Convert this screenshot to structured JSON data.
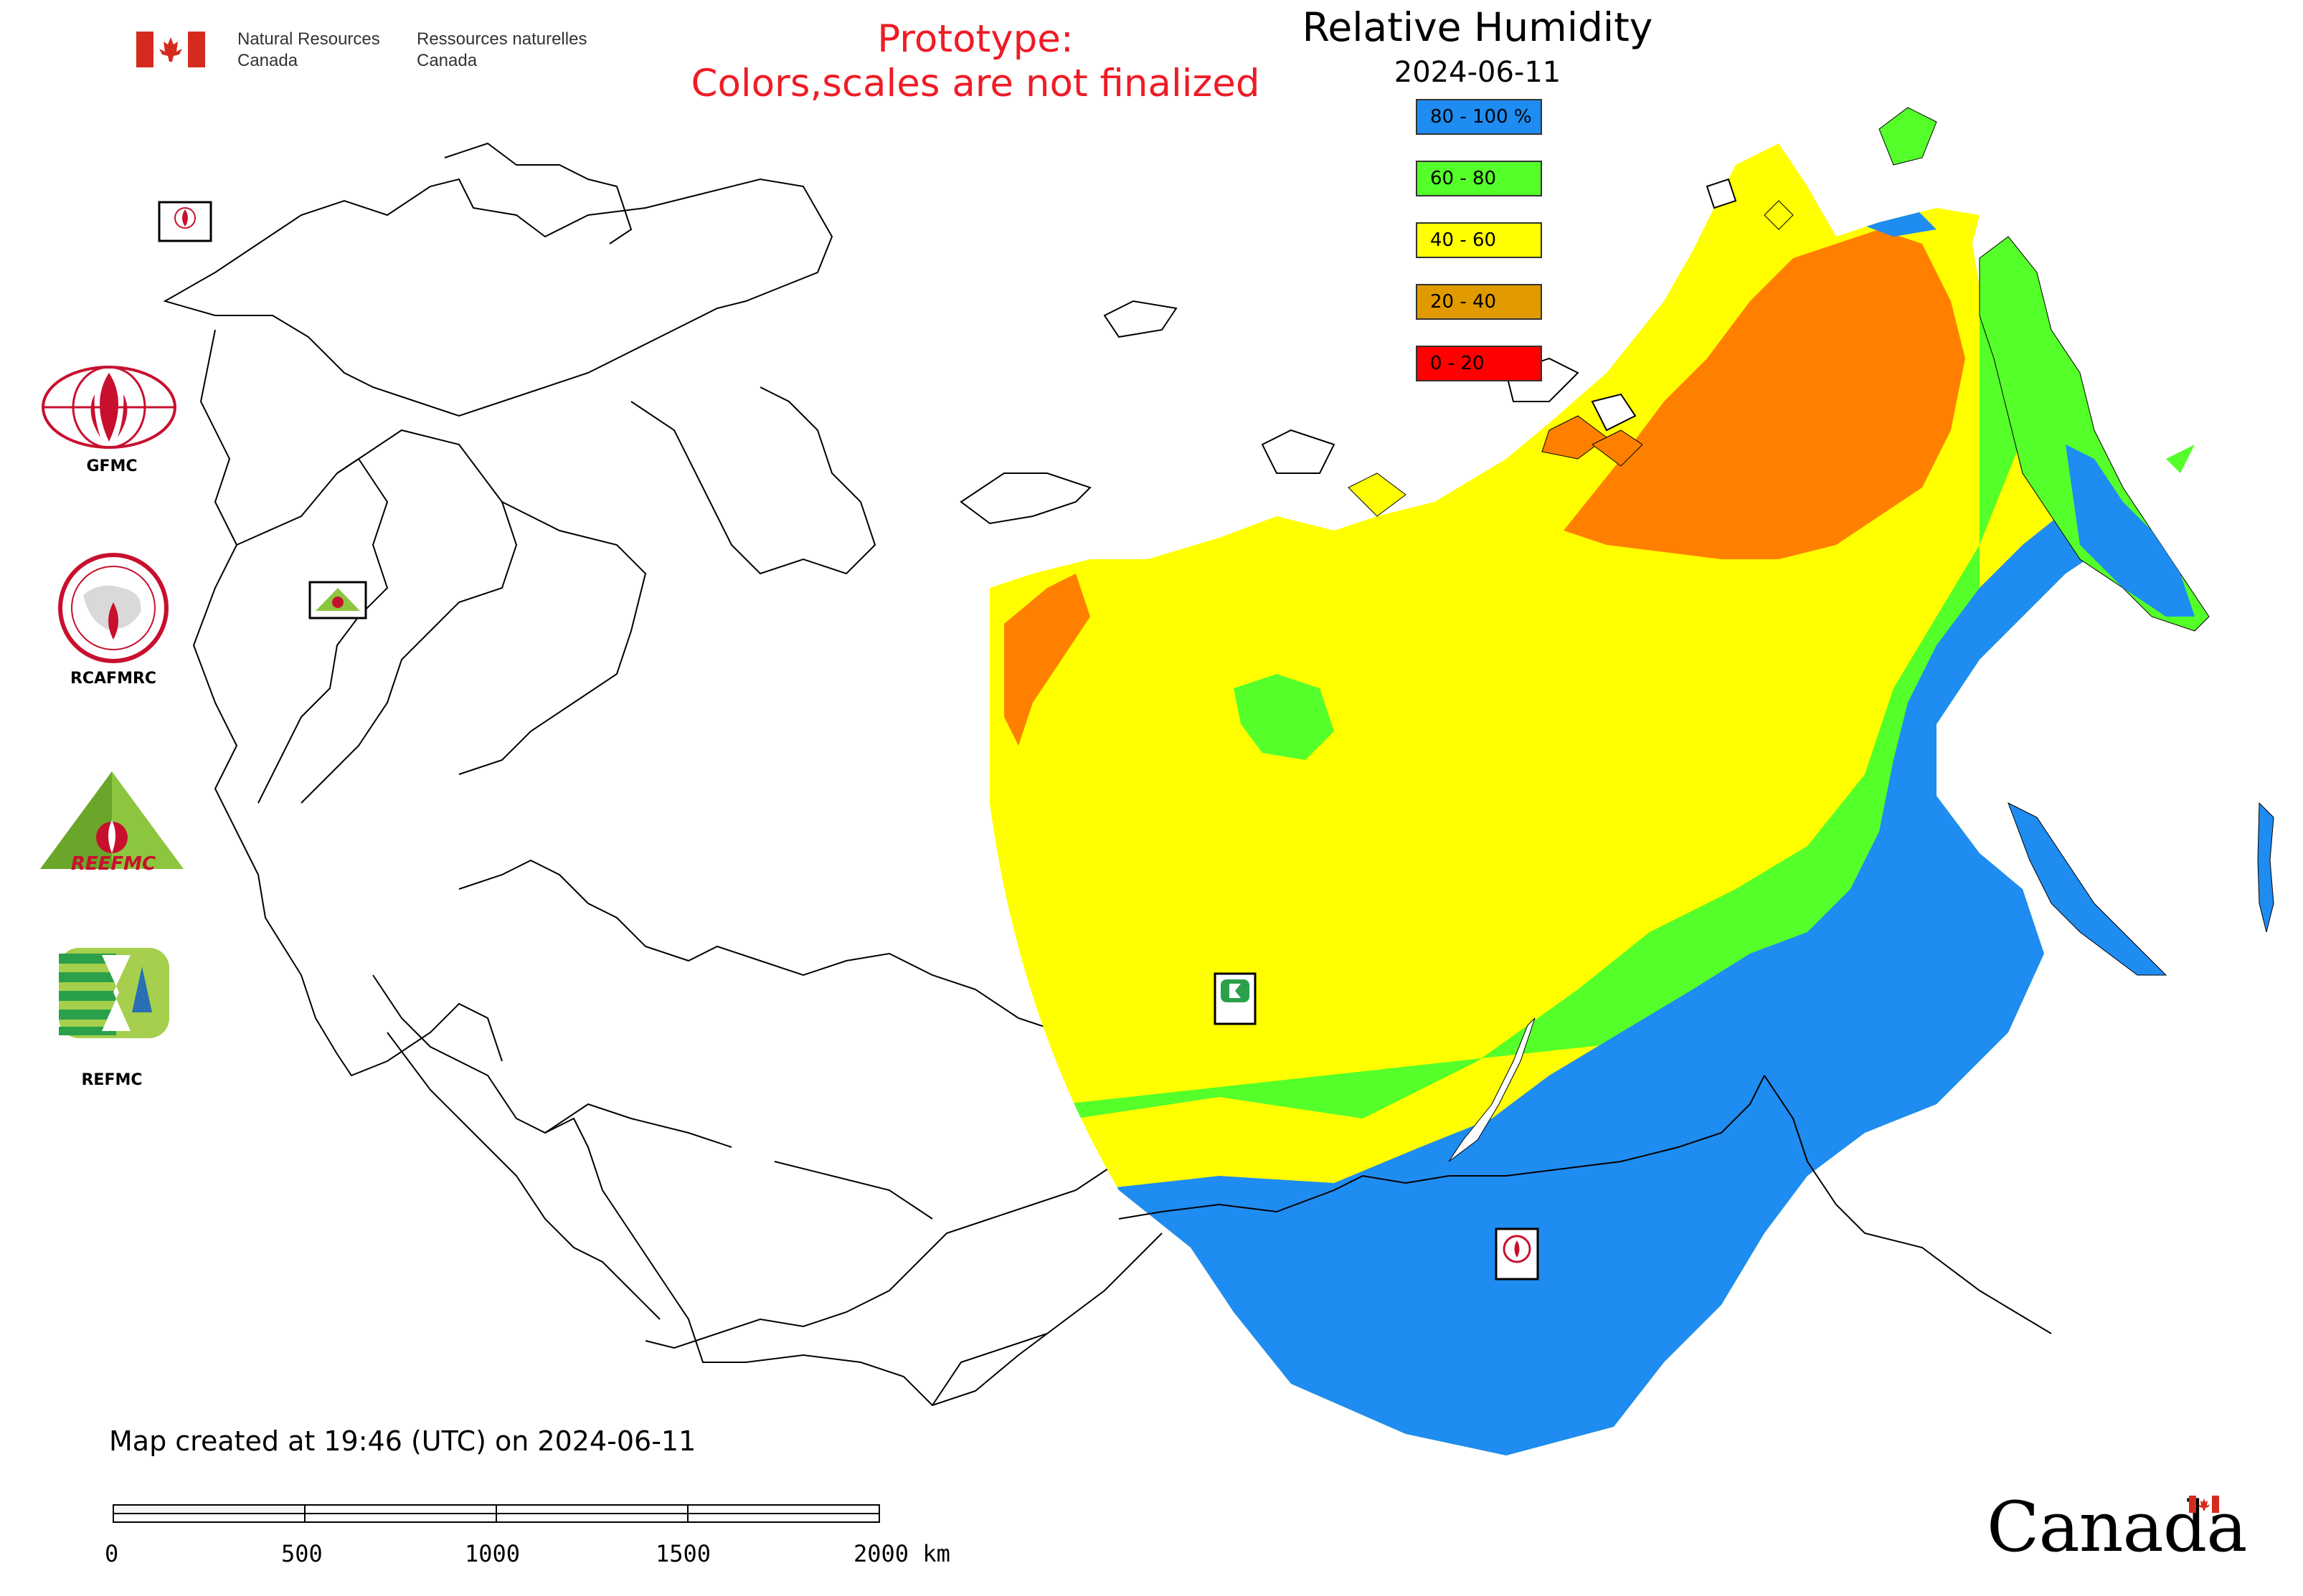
{
  "header": {
    "dept_en_line1": "Natural Resources",
    "dept_en_line2": "Canada",
    "dept_fr_line1": "Ressources naturelles",
    "dept_fr_line2": "Canada",
    "flag_icon": "canada-flag-icon"
  },
  "prototype_notice": {
    "line1": "Prototype:",
    "line2": "Colors,scales are not finalized",
    "color": "#ee1c25"
  },
  "legend": {
    "title": "Relative Humidity",
    "date": "2024-06-11",
    "classes": [
      {
        "label": "80 - 100 %",
        "color": "#1e8cf0"
      },
      {
        "label": "60 - 80",
        "color": "#55ff2a"
      },
      {
        "label": "40 - 60",
        "color": "#ffff00"
      },
      {
        "label": "20 - 40",
        "color": "#e09a00"
      },
      {
        "label": "0 - 20",
        "color": "#ff0000"
      }
    ]
  },
  "map_colors": {
    "very_humid": "#1e8cf0",
    "humid": "#55ff2a",
    "moderate": "#ffff00",
    "dry": "#ff8000",
    "dry_dark": "#e09a00",
    "boundary": "#000000",
    "nodata": "#ffffff"
  },
  "sidebar_logos": [
    {
      "label": "GFMC",
      "icon": "gfmc-logo-icon"
    },
    {
      "label": "RCAFMRC",
      "icon": "rcafmrc-logo-icon"
    },
    {
      "label": "",
      "icon": "reefmc-logo-icon",
      "logo_text": "REEFMC"
    },
    {
      "label": "REFMC",
      "icon": "refmc-logo-icon"
    }
  ],
  "map_markers": [
    {
      "label": "GFMC",
      "icon": "gfmc-marker-icon"
    },
    {
      "label": "REEFMC",
      "icon": "reefmc-marker-icon"
    },
    {
      "label": "REFMC",
      "icon": "refmc-marker-icon"
    },
    {
      "label": "RCAFMRC",
      "icon": "rcafmrc-marker-icon"
    }
  ],
  "footer": {
    "created": "Map created at 19:46 (UTC) on 2024-06-11",
    "scale_ticks": [
      "0",
      "500",
      "1000",
      "1500",
      "2000 km"
    ],
    "wordmark": "Canada"
  }
}
